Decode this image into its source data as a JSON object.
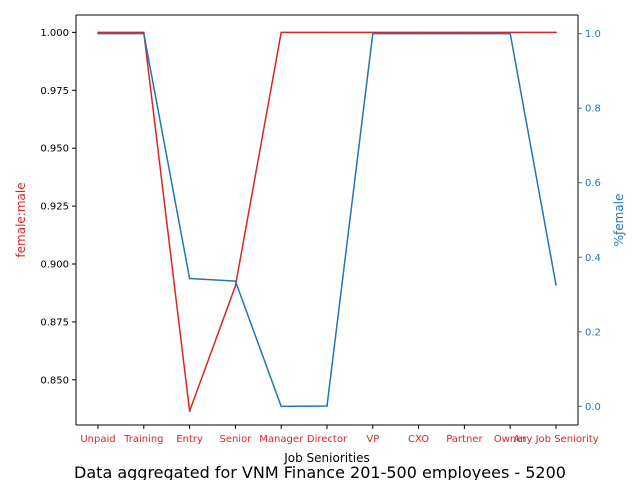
{
  "chart_data": {
    "type": "line",
    "categories": [
      "Unpaid",
      "Training",
      "Entry",
      "Senior",
      "Manager",
      "Director",
      "VP",
      "CXO",
      "Partner",
      "Owner",
      "Any Job Seniority"
    ],
    "xlabel": "Job Seniorities",
    "footer_title": "Data aggregated for VNM Finance 201-500 employees - 5200",
    "series": [
      {
        "axis": "left",
        "ylabel": "female:male",
        "color": "#d62728",
        "values": [
          1.0,
          1.0,
          0.8365,
          0.8905,
          1.0,
          1.0,
          1.0,
          1.0,
          1.0,
          1.0,
          1.0
        ]
      },
      {
        "axis": "right",
        "ylabel": "%ƒemale",
        "color": "#1f77b4",
        "values": [
          1.0,
          1.0,
          0.343,
          0.336,
          0.0,
          0.001,
          1.0,
          1.0,
          1.0,
          1.0,
          0.326
        ]
      }
    ],
    "left_axis": {
      "ylim": [
        0.8305,
        1.0075
      ],
      "ticks": [
        "0.850",
        "0.875",
        "0.900",
        "0.925",
        "0.950",
        "0.975",
        "1.000"
      ],
      "tick_values": [
        0.85,
        0.875,
        0.9,
        0.925,
        0.95,
        0.975,
        1.0
      ]
    },
    "right_axis": {
      "ylim": [
        -0.05,
        1.05
      ],
      "ticks": [
        "0.0",
        "0.2",
        "0.4",
        "0.6",
        "0.8",
        "1.0"
      ],
      "tick_values": [
        0.0,
        0.2,
        0.4,
        0.6,
        0.8,
        1.0
      ]
    },
    "grid": false
  }
}
